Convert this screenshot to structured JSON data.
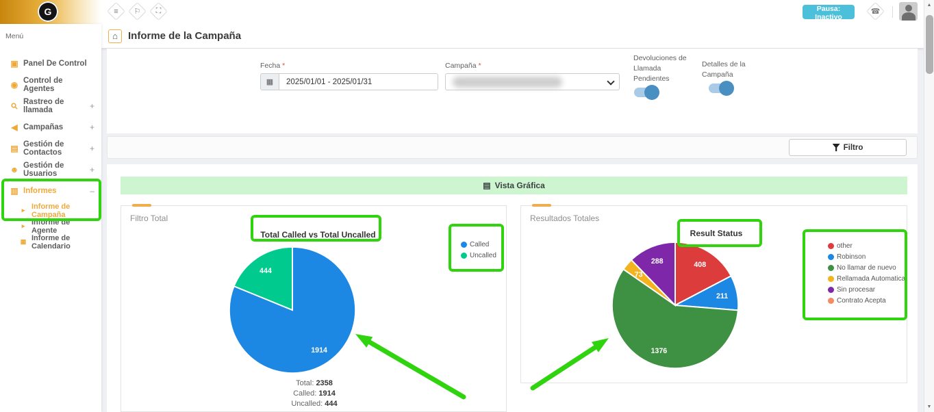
{
  "topbar": {
    "pause_label": "Pausa: Inactivo"
  },
  "header": {
    "title": "Informe de la Campaña"
  },
  "sidebar": {
    "menu_label": "Menú",
    "items": [
      {
        "label": "Panel De Control",
        "icon": "dashboard-icon"
      },
      {
        "label": "Control de Agentes",
        "icon": "eye-icon"
      },
      {
        "label": "Rastreo de llamada",
        "icon": "search-icon",
        "expander": "+"
      },
      {
        "label": "Campañas",
        "icon": "megaphone-icon",
        "expander": "+"
      },
      {
        "label": "Gestión de Contactos",
        "icon": "contacts-icon",
        "expander": "+"
      },
      {
        "label": "Gestión de Usuarios",
        "icon": "users-icon",
        "expander": "+"
      },
      {
        "label": "Informes",
        "icon": "reports-icon",
        "expander": "–",
        "active": true
      }
    ],
    "subitems": [
      {
        "label": "Informe de Campaña",
        "icon": "arrow-icon",
        "active": true
      },
      {
        "label": "Informe de Agente",
        "icon": "arrow-icon"
      },
      {
        "label": "Informe de Calendario",
        "icon": "calendar-icon"
      }
    ]
  },
  "form": {
    "date_label": "Fecha",
    "required_mark": "*",
    "date_value": "2025/01/01 - 2025/01/31",
    "campaign_label": "Campaña",
    "toggles": [
      {
        "label": "Devoluciones de Llamada Pendientes",
        "on": true
      },
      {
        "label": "Detalles de la Campaña",
        "on": true
      }
    ],
    "filter_label": "Filtro"
  },
  "banner_label": "Vista Gráfica",
  "chart_data": [
    {
      "type": "pie",
      "panel_title": "Filtro Total",
      "title": "Total Called vs Total Uncalled",
      "legend_position": "right",
      "slices": [
        {
          "label": "Called",
          "value": 1914,
          "color": "#1d87e4"
        },
        {
          "label": "Uncalled",
          "value": 444,
          "color": "#00ca8d"
        }
      ],
      "summary": [
        {
          "label": "Total",
          "value": "2358"
        },
        {
          "label": "Called",
          "value": "1914"
        },
        {
          "label": "Uncalled",
          "value": "444"
        }
      ]
    },
    {
      "type": "pie",
      "panel_title": "Resultados Totales",
      "title": "Result Status",
      "legend_position": "right",
      "slices": [
        {
          "label": "other",
          "value": 408,
          "color": "#dd3c3c"
        },
        {
          "label": "Robinson",
          "value": 211,
          "color": "#1d87e4"
        },
        {
          "label": "No llamar de nuevo",
          "value": 1376,
          "color": "#3e9142"
        },
        {
          "label": "Rellamada Automatica",
          "value": 73,
          "color": "#f2b31f"
        },
        {
          "label": "Sin procesar",
          "value": 288,
          "color": "#7e27a8"
        },
        {
          "label": "Contrato Acepta",
          "value": 0,
          "color": "#f58a64"
        }
      ]
    }
  ],
  "annotation_color": "#2fd40e"
}
